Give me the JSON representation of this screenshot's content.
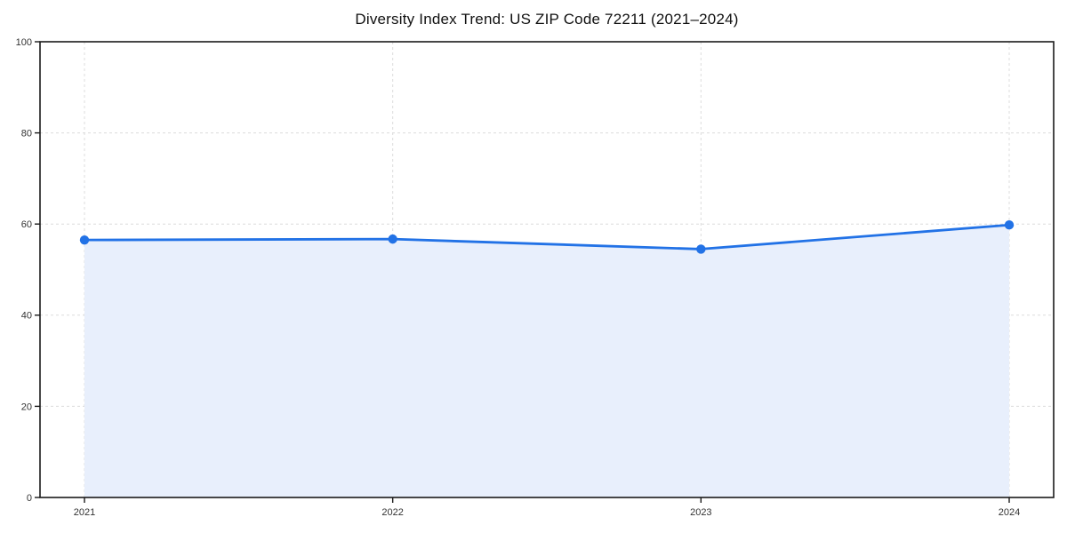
{
  "chart_data": {
    "type": "line",
    "title": "Diversity Index Trend: US ZIP Code 72211 (2021–2024)",
    "categories": [
      "2021",
      "2022",
      "2023",
      "2024"
    ],
    "series": [
      {
        "name": "Diversity Index",
        "values": [
          56.5,
          56.7,
          54.5,
          59.8
        ]
      }
    ],
    "xlabel": "",
    "ylabel": "",
    "ylim": [
      0,
      100
    ],
    "yticks": [
      0,
      20,
      40,
      60,
      80,
      100
    ],
    "grid": true,
    "grid_style": "dashed",
    "legend": "none",
    "marker": "circle",
    "area_fill": true,
    "colors": {
      "line": "#2272e6",
      "marker": "#2272e6",
      "area": "#e8effc",
      "grid": "#dcdcdc",
      "axis": "#1a1a1a",
      "tick_label": "#333333",
      "background": "#ffffff"
    }
  }
}
